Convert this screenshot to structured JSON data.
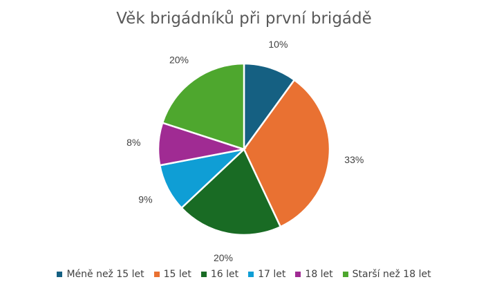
{
  "chart_data": {
    "type": "pie",
    "title": "Věk brigádníků při první brigádě",
    "categories": [
      "Méně než 15 let",
      "15 let",
      "16 let",
      "17 let",
      "18 let",
      "Starší než 18 let"
    ],
    "values": [
      10,
      33,
      20,
      9,
      8,
      20
    ],
    "labels": [
      "10%",
      "33%",
      "20%",
      "9%",
      "8%",
      "20%"
    ],
    "colors": [
      "#156082",
      "#E97132",
      "#196B24",
      "#0F9ED5",
      "#A02B93",
      "#4EA72E"
    ],
    "legend_position": "bottom"
  }
}
